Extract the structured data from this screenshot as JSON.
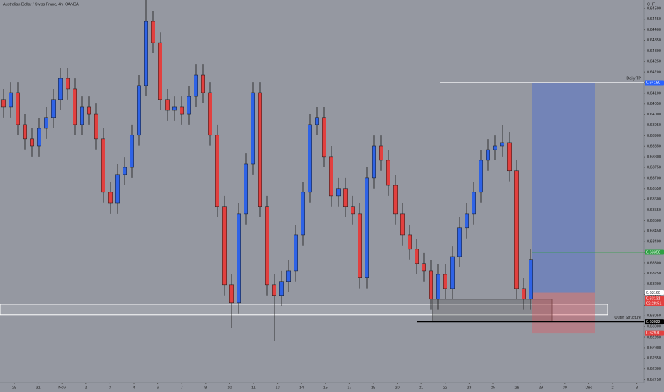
{
  "chart_data": {
    "type": "candlestick",
    "title": "Australian Dollar / Swiss Franc, 4h, OANDA",
    "currency": "CHF",
    "up_color": "#2f63e6",
    "down_color": "#e2403f",
    "xlim": [
      -0.5,
      89.9
    ],
    "ylim": [
      0.62735,
      0.6454
    ],
    "xticks": [
      {
        "value": 1.5,
        "label": "28"
      },
      {
        "value": 4.86,
        "label": "31"
      },
      {
        "value": 8.22,
        "label": "Nov"
      },
      {
        "value": 11.58,
        "label": "2"
      },
      {
        "value": 14.94,
        "label": "3"
      },
      {
        "value": 18.3,
        "label": "4"
      },
      {
        "value": 21.66,
        "label": "6"
      },
      {
        "value": 25.02,
        "label": "7"
      },
      {
        "value": 28.38,
        "label": "8"
      },
      {
        "value": 31.74,
        "label": "10"
      },
      {
        "value": 35.1,
        "label": "11"
      },
      {
        "value": 38.46,
        "label": "13"
      },
      {
        "value": 41.82,
        "label": "14"
      },
      {
        "value": 45.18,
        "label": "15"
      },
      {
        "value": 48.54,
        "label": "17"
      },
      {
        "value": 51.9,
        "label": "18"
      },
      {
        "value": 55.26,
        "label": "20"
      },
      {
        "value": 58.62,
        "label": "21"
      },
      {
        "value": 61.98,
        "label": "22"
      },
      {
        "value": 65.34,
        "label": "23"
      },
      {
        "value": 68.7,
        "label": "25"
      },
      {
        "value": 72.06,
        "label": "28"
      },
      {
        "value": 75.42,
        "label": "29"
      },
      {
        "value": 78.78,
        "label": "30"
      },
      {
        "value": 82.14,
        "label": "Dec"
      },
      {
        "value": 85.5,
        "label": "2"
      },
      {
        "value": 88.86,
        "label": "3"
      }
    ],
    "yticks": [
      {
        "value": 0.6275,
        "label": "0.62750"
      },
      {
        "value": 0.628,
        "label": "0.62800"
      },
      {
        "value": 0.6285,
        "label": "0.62850"
      },
      {
        "value": 0.629,
        "label": "0.62900"
      },
      {
        "value": 0.6295,
        "label": "0.62950"
      },
      {
        "value": 0.63,
        "label": "0.63000"
      },
      {
        "value": 0.6305,
        "label": "0.63050"
      },
      {
        "value": 0.631,
        "label": "0.63100"
      },
      {
        "value": 0.6315,
        "label": "0.63150"
      },
      {
        "value": 0.632,
        "label": "0.63200"
      },
      {
        "value": 0.6325,
        "label": "0.63250"
      },
      {
        "value": 0.633,
        "label": "0.63300"
      },
      {
        "value": 0.6335,
        "label": "0.63350"
      },
      {
        "value": 0.634,
        "label": "0.63400"
      },
      {
        "value": 0.6345,
        "label": "0.63450"
      },
      {
        "value": 0.635,
        "label": "0.63500"
      },
      {
        "value": 0.6355,
        "label": "0.63550"
      },
      {
        "value": 0.636,
        "label": "0.63600"
      },
      {
        "value": 0.6365,
        "label": "0.63650"
      },
      {
        "value": 0.637,
        "label": "0.63700"
      },
      {
        "value": 0.6375,
        "label": "0.63750"
      },
      {
        "value": 0.638,
        "label": "0.63800"
      },
      {
        "value": 0.6385,
        "label": "0.63850"
      },
      {
        "value": 0.639,
        "label": "0.63900"
      },
      {
        "value": 0.6395,
        "label": "0.63950"
      },
      {
        "value": 0.64,
        "label": "0.64000"
      },
      {
        "value": 0.6405,
        "label": "0.64050"
      },
      {
        "value": 0.641,
        "label": "0.64100"
      },
      {
        "value": 0.6415,
        "label": "0.64150"
      },
      {
        "value": 0.642,
        "label": "0.64200"
      },
      {
        "value": 0.6425,
        "label": "0.64250"
      },
      {
        "value": 0.643,
        "label": "0.64300"
      },
      {
        "value": 0.6435,
        "label": "0.64350"
      },
      {
        "value": 0.644,
        "label": "0.64400"
      },
      {
        "value": 0.6445,
        "label": "0.64450"
      },
      {
        "value": 0.645,
        "label": "0.64500"
      }
    ],
    "open": [
      0.6407,
      0.64036,
      0.64103,
      0.63952,
      0.63885,
      0.63851,
      0.63935,
      0.63986,
      0.6407,
      0.6417,
      0.6412,
      0.63952,
      0.64036,
      0.64002,
      0.63885,
      0.63633,
      0.63582,
      0.63717,
      0.6375,
      0.63902,
      0.64137,
      0.64439,
      0.64338,
      0.6407,
      0.64019,
      0.64036,
      0.64002,
      0.64086,
      0.64187,
      0.64103,
      0.63902,
      0.63566,
      0.63196,
      0.63112,
      0.63532,
      0.63767,
      0.64103,
      0.63566,
      0.63196,
      0.63146,
      0.63213,
      0.63263,
      0.63431,
      0.63633,
      0.63952,
      0.63986,
      0.63801,
      0.63616,
      0.6365,
      0.63566,
      0.63532,
      0.6323,
      0.637,
      0.63851,
      0.63784,
      0.63666,
      0.63532,
      0.63431,
      0.63364,
      0.63297,
      0.63263,
      0.63129,
      0.63246,
      0.63179,
      0.6333,
      0.63465,
      0.63532,
      0.63633,
      0.63784,
      0.63834,
      0.63851,
      0.63868,
      0.63734,
      0.63179,
      0.63129
    ],
    "high": [
      0.6412,
      0.64153,
      0.64153,
      0.64002,
      0.63935,
      0.63985,
      0.64036,
      0.6412,
      0.6422,
      0.6422,
      0.6417,
      0.64086,
      0.64086,
      0.64052,
      0.63935,
      0.63683,
      0.63767,
      0.638,
      0.63952,
      0.64187,
      0.6454,
      0.64489,
      0.64388,
      0.6412,
      0.64086,
      0.64086,
      0.64136,
      0.64237,
      0.64237,
      0.64153,
      0.63952,
      0.63616,
      0.63246,
      0.63582,
      0.63817,
      0.64153,
      0.64153,
      0.63616,
      0.63246,
      0.63263,
      0.63313,
      0.63481,
      0.63683,
      0.64002,
      0.64036,
      0.64036,
      0.63851,
      0.637,
      0.637,
      0.63616,
      0.63582,
      0.6375,
      0.63901,
      0.63901,
      0.63834,
      0.63716,
      0.63582,
      0.63481,
      0.63414,
      0.63347,
      0.63313,
      0.63296,
      0.63296,
      0.6338,
      0.63515,
      0.63582,
      0.63683,
      0.63834,
      0.63884,
      0.63901,
      0.6395,
      0.63918,
      0.63784,
      0.63229,
      0.63364
    ],
    "low": [
      0.63986,
      0.63986,
      0.63902,
      0.63835,
      0.63801,
      0.63801,
      0.63885,
      0.63936,
      0.6402,
      0.6407,
      0.63902,
      0.63902,
      0.63952,
      0.63835,
      0.63583,
      0.63532,
      0.63532,
      0.63667,
      0.637,
      0.63852,
      0.64087,
      0.64288,
      0.6402,
      0.63969,
      0.63969,
      0.63952,
      0.63952,
      0.64036,
      0.64053,
      0.63852,
      0.63516,
      0.63146,
      0.62994,
      0.63062,
      0.63482,
      0.63717,
      0.63516,
      0.63146,
      0.6293,
      0.63096,
      0.63163,
      0.63213,
      0.63381,
      0.63583,
      0.63902,
      0.63751,
      0.63566,
      0.63566,
      0.63516,
      0.63482,
      0.6318,
      0.6318,
      0.6365,
      0.63734,
      0.63616,
      0.63482,
      0.63381,
      0.63314,
      0.63247,
      0.63213,
      0.63079,
      0.63079,
      0.63129,
      0.63129,
      0.6328,
      0.63415,
      0.63482,
      0.63583,
      0.63734,
      0.63784,
      0.63801,
      0.63684,
      0.63129,
      0.63079,
      0.63079
    ],
    "close": [
      0.64036,
      0.64103,
      0.63952,
      0.63885,
      0.63851,
      0.63935,
      0.63986,
      0.6407,
      0.6417,
      0.6412,
      0.63952,
      0.64036,
      0.64002,
      0.63885,
      0.63633,
      0.63582,
      0.63717,
      0.6375,
      0.63902,
      0.64137,
      0.64439,
      0.64338,
      0.6407,
      0.64019,
      0.64036,
      0.64002,
      0.64086,
      0.64187,
      0.64103,
      0.63902,
      0.63566,
      0.63196,
      0.63112,
      0.63532,
      0.63767,
      0.64103,
      0.63566,
      0.63196,
      0.63146,
      0.63213,
      0.63263,
      0.63431,
      0.63633,
      0.63952,
      0.63986,
      0.63801,
      0.63616,
      0.6365,
      0.63566,
      0.63532,
      0.6323,
      0.637,
      0.63851,
      0.63784,
      0.63666,
      0.63532,
      0.63431,
      0.63364,
      0.63297,
      0.63263,
      0.63129,
      0.63246,
      0.63179,
      0.6333,
      0.63465,
      0.63532,
      0.63633,
      0.63784,
      0.63834,
      0.63851,
      0.63868,
      0.63734,
      0.63179,
      0.63129,
      0.63314
    ],
    "position": {
      "x": [
        74.2,
        83.0
      ],
      "entry": 0.6316,
      "target": 0.6415,
      "stop": 0.6297
    },
    "zone": {
      "x": [
        -0.5,
        84.8
      ],
      "top": 0.63105,
      "bottom": 0.63055
    },
    "box": {
      "x": [
        60.2,
        77.0
      ],
      "top": 0.63129,
      "bottom": 0.63022
    },
    "lines": [
      {
        "text": "Daily TP",
        "value": 0.6415,
        "x": 61.3,
        "color": "#ffffff"
      },
      {
        "text": "Outer Structure",
        "value": 0.63022,
        "x": 58.0,
        "color": "#000000"
      },
      {
        "value": 0.6335,
        "x": 74.2,
        "color": "#2ea043"
      }
    ],
    "price_labels": [
      {
        "value": 0.6415,
        "label": "0.64150",
        "color": "#2962ff"
      },
      {
        "value": 0.6335,
        "label": "0.63350",
        "color": "#2ea043"
      },
      {
        "value": 0.6316,
        "label": "0.63160",
        "color": "#ffffff"
      },
      {
        "value": 0.63131,
        "label": "0.63131",
        "color": "#e2403f"
      },
      {
        "value": 0.63022,
        "label": "0.63022",
        "color": "#000000"
      },
      {
        "value": 0.6297,
        "label": "0.62970",
        "color": "#e2403f"
      }
    ],
    "countdown": "02:28:51"
  }
}
